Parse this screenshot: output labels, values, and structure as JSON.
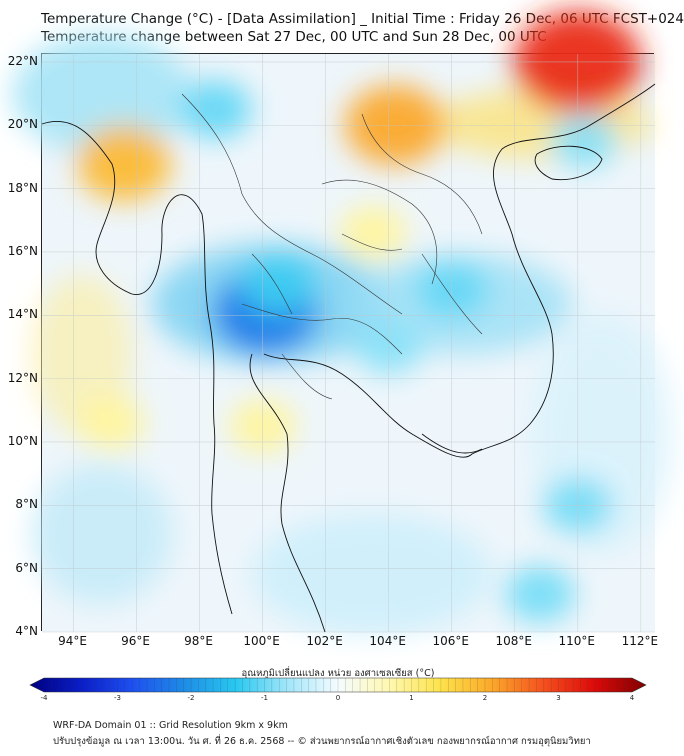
{
  "header": {
    "title_line1": "Temperature Change (°C) - [Data Assimilation] _ Initial Time : Friday 26 Dec, 06 UTC FCST+024",
    "title_line2": "Temperature change between Sat 27 Dec, 00 UTC and Sun 28 Dec, 00 UTC"
  },
  "map": {
    "lat_labels": [
      "22°N",
      "20°N",
      "18°N",
      "16°N",
      "14°N",
      "12°N",
      "10°N",
      "8°N",
      "6°N",
      "4°N"
    ],
    "lon_labels": [
      "94°E",
      "96°E",
      "98°E",
      "100°E",
      "102°E",
      "104°E",
      "106°E",
      "108°E",
      "110°E",
      "112°E"
    ],
    "features": [
      {
        "name": "warm-anomaly-south-china",
        "lon": 110.0,
        "lat": 22.0,
        "change": 3.0
      },
      {
        "name": "warm-anomaly-northern-vietnam",
        "lon": 104.2,
        "lat": 20.0,
        "change": 2.0
      },
      {
        "name": "warm-anomaly-myanmar-coast",
        "lon": 95.6,
        "lat": 18.8,
        "change": 1.8
      },
      {
        "name": "warm-anomaly-northeast-thailand",
        "lon": 103.5,
        "lat": 16.6,
        "change": 0.8
      },
      {
        "name": "warm-anomaly-andaman-sea",
        "lon": 95.2,
        "lat": 10.6,
        "change": 0.8
      },
      {
        "name": "warm-anomaly-gulf-of-thailand",
        "lon": 100.0,
        "lat": 10.5,
        "change": 0.8
      },
      {
        "name": "cold-anomaly-bangkok",
        "lon": 100.1,
        "lat": 14.1,
        "change": -2.2
      },
      {
        "name": "cold-anomaly-central-thailand",
        "lon": 100.5,
        "lat": 15.0,
        "change": -1.2
      },
      {
        "name": "cold-anomaly-northern-myanmar",
        "lon": 98.5,
        "lat": 20.5,
        "change": -1.0
      },
      {
        "name": "cold-anomaly-southern-laos",
        "lon": 106.0,
        "lat": 14.8,
        "change": -1.0
      },
      {
        "name": "cold-anomaly-cambodia",
        "lon": 104.0,
        "lat": 13.0,
        "change": -0.8
      },
      {
        "name": "cold-anomaly-hainan",
        "lon": 110.2,
        "lat": 19.5,
        "change": -0.8
      },
      {
        "name": "cold-anomaly-south-china-sea",
        "lon": 110.0,
        "lat": 8.0,
        "change": -0.9
      },
      {
        "name": "cold-anomaly-natuna",
        "lon": 108.8,
        "lat": 5.2,
        "change": -0.9
      }
    ]
  },
  "colorbar": {
    "label": "อุณหภูมิเปลี่ยนแปลง หน่วย องศาเซลเซียส (°C)",
    "ticks": [
      "-4",
      "-3",
      "-2",
      "-1",
      "0",
      "1",
      "2",
      "3",
      "4"
    ],
    "colors": [
      "#000080",
      "#0a1ec8",
      "#1e50f0",
      "#1e8ce6",
      "#28c8f0",
      "#a0e6fa",
      "#f5fcff",
      "#fff8b0",
      "#fde24a",
      "#fba82a",
      "#f5501e",
      "#dc0a0a",
      "#800000"
    ]
  },
  "footer": {
    "line1": "WRF-DA Domain 01 :: Grid Resolution 9km x 9km",
    "line2": "ปรับปรุงข้อมูล ณ เวลา 13:00น. วัน ศ. ที่ 26 ธ.ค. 2568 -- © ส่วนพยากรณ์อากาศเชิงตัวเลข กองพยากรณ์อากาศ กรมอุตุนิยมวิทยา"
  }
}
